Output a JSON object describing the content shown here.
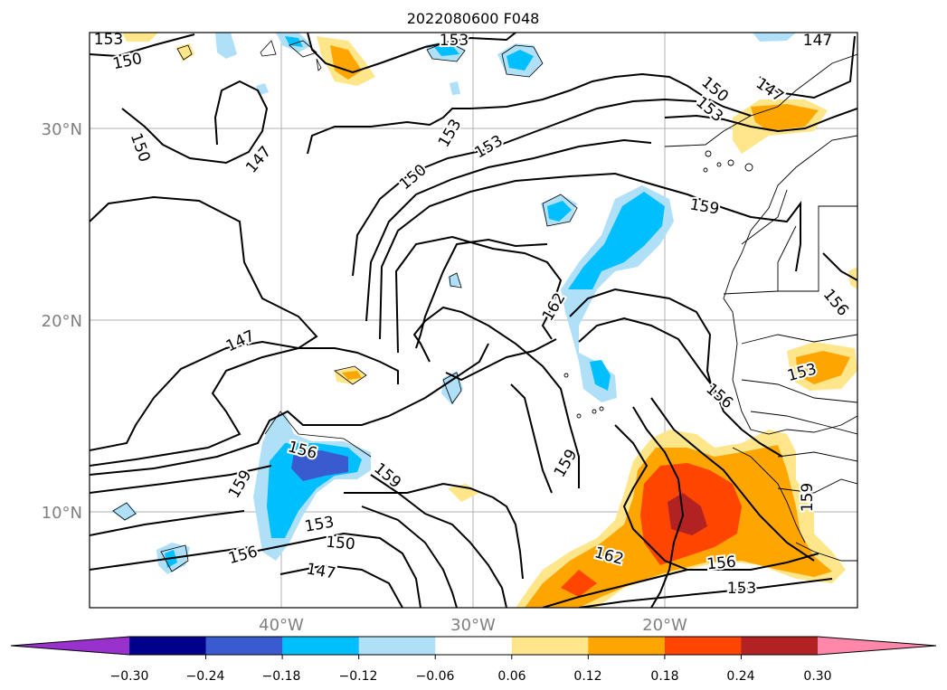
{
  "title": "2022080600 F048",
  "axes": {
    "lat_ticks": [
      "30°N",
      "20°N",
      "10°N"
    ],
    "lon_ticks": [
      "40°W",
      "30°W",
      "20°W"
    ],
    "tick_color": "#808080"
  },
  "contour_labels": [
    {
      "id": "a",
      "text": "153"
    },
    {
      "id": "b",
      "text": "150"
    },
    {
      "id": "c",
      "text": "153"
    },
    {
      "id": "d",
      "text": "147"
    },
    {
      "id": "e",
      "text": "150"
    },
    {
      "id": "f",
      "text": "153"
    },
    {
      "id": "g",
      "text": "150"
    },
    {
      "id": "h",
      "text": "153"
    },
    {
      "id": "i",
      "text": "147"
    },
    {
      "id": "j",
      "text": "150"
    },
    {
      "id": "k",
      "text": "153"
    },
    {
      "id": "l",
      "text": "147"
    },
    {
      "id": "m",
      "text": "159"
    },
    {
      "id": "n",
      "text": "162"
    },
    {
      "id": "o",
      "text": "147"
    },
    {
      "id": "p",
      "text": "156"
    },
    {
      "id": "q",
      "text": "153"
    },
    {
      "id": "r",
      "text": "156"
    },
    {
      "id": "s",
      "text": "156"
    },
    {
      "id": "t",
      "text": "159"
    },
    {
      "id": "u",
      "text": "159"
    },
    {
      "id": "v",
      "text": "153"
    },
    {
      "id": "w",
      "text": "150"
    },
    {
      "id": "x",
      "text": "156"
    },
    {
      "id": "y",
      "text": "147"
    },
    {
      "id": "z",
      "text": "162"
    },
    {
      "id": "aa",
      "text": "156"
    },
    {
      "id": "ab",
      "text": "153"
    },
    {
      "id": "ac",
      "text": "159"
    }
  ],
  "colorbar": {
    "tick_labels": [
      "−0.30",
      "−0.24",
      "−0.18",
      "−0.12",
      "−0.06",
      "0.06",
      "0.12",
      "0.18",
      "0.24",
      "0.30"
    ],
    "colors": [
      "#9932cc",
      "#00008b",
      "#3a5bd0",
      "#00bfff",
      "#b0e0f8",
      "#ffffff",
      "#ffe68a",
      "#ffa500",
      "#ff4500",
      "#b22222",
      "#ff88aa"
    ]
  }
}
